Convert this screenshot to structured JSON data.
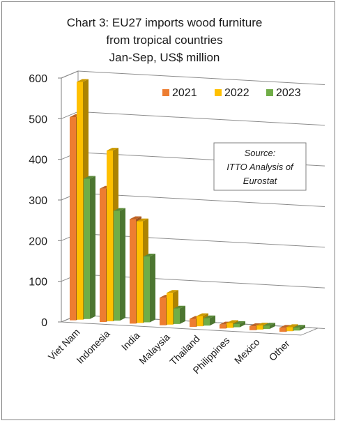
{
  "chart_data": {
    "type": "bar",
    "title_lines": [
      "Chart 3: EU27 imports wood furniture",
      "from tropical countries",
      "Jan-Sep, US$ million"
    ],
    "categories": [
      "Viet Nam",
      "Indonesia",
      "India",
      "Malaysia",
      "Thailand",
      "Philippines",
      "Mexico",
      "Other"
    ],
    "series": [
      {
        "name": "2021",
        "color": "#ed7d31",
        "values": [
          500,
          328,
          257,
          68,
          20,
          10,
          10,
          10
        ]
      },
      {
        "name": "2022",
        "color": "#ffc000",
        "values": [
          585,
          420,
          250,
          78,
          25,
          12,
          10,
          10
        ]
      },
      {
        "name": "2023",
        "color": "#70ad47",
        "values": [
          345,
          270,
          162,
          38,
          18,
          8,
          8,
          7
        ]
      }
    ],
    "yticks": [
      0,
      100,
      200,
      300,
      400,
      500,
      600
    ],
    "ylim": [
      0,
      600
    ],
    "grid": true,
    "legend_position": "top-right",
    "source_lines": [
      "Source:",
      "ITTO Analysis of",
      "Eurostat"
    ]
  }
}
